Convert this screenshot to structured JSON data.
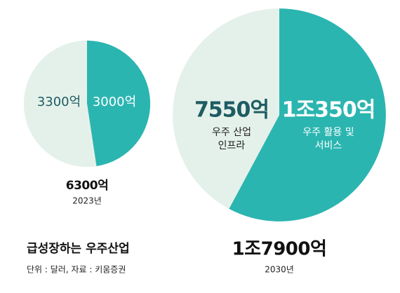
{
  "title": "급성장하는 우주산업",
  "source": "단위 : 달러, 자료 : 키움증권",
  "chart_data": [
    {
      "type": "pie",
      "subtitle": "2023년",
      "total": 6300,
      "total_label": "6300억",
      "values": [
        3000,
        3300
      ],
      "value_labels": [
        "3000억",
        "3300억"
      ],
      "colors": [
        "#2bb5b0",
        "#e4f1ea"
      ]
    },
    {
      "type": "pie",
      "subtitle": "2030년",
      "total": 17900,
      "total_label": "1조7900억",
      "values": [
        10350,
        7550
      ],
      "value_labels": [
        "1조350억",
        "7550억"
      ],
      "categories": [
        [
          "우주 활용 및",
          "서비스"
        ],
        [
          "우주 산업",
          "인프라"
        ]
      ],
      "colors": [
        "#2bb5b0",
        "#e4f1ea"
      ]
    }
  ]
}
